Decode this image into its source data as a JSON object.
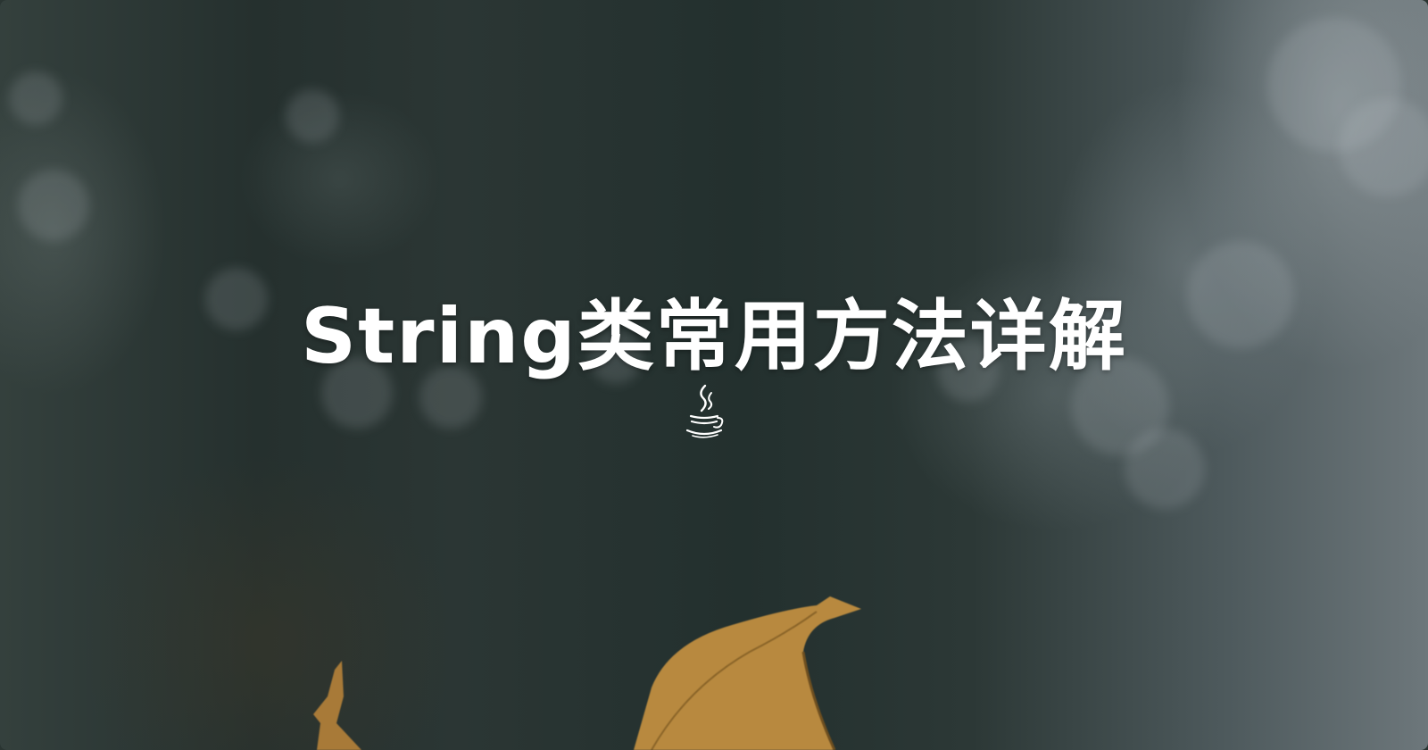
{
  "title": "String类常用方法详解",
  "icon": "java-coffee-cup-icon",
  "colors": {
    "title": "#ffffff",
    "background": "#2a3532",
    "leaf": "#b8893f"
  }
}
